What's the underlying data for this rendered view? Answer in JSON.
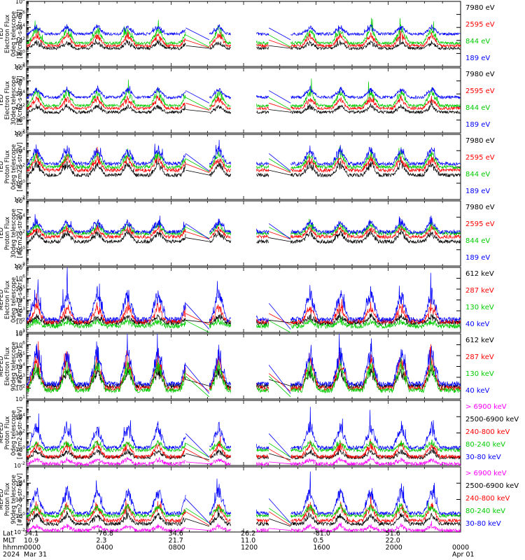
{
  "chart_data": [
    {
      "type": "line",
      "instrument": "TED",
      "ylabel": [
        "TED",
        "Electron Flux",
        "0deg telescope",
        "[#/cm2-s-str-eV]"
      ],
      "y_log_range": [
        -2,
        8
      ],
      "ytick_exponents": [
        -2,
        0,
        2,
        4,
        6,
        8
      ],
      "grid": false,
      "series": [
        {
          "name": "7980 eV",
          "color": "#000000",
          "baseline": 0.8,
          "amp": 1.0
        },
        {
          "name": "2595 eV",
          "color": "#ff0000",
          "baseline": 1.2,
          "amp": 1.8
        },
        {
          "name": "844 eV",
          "color": "#00cc00",
          "baseline": 1.6,
          "amp": 2.4
        },
        {
          "name": "189 eV",
          "color": "#0000ff",
          "baseline": 3.0,
          "amp": 1.2
        }
      ]
    },
    {
      "type": "line",
      "instrument": "TED",
      "ylabel": [
        "TED",
        "Electron Flux",
        "30deg telescope",
        "[#/cm2-s-str-eV]"
      ],
      "y_log_range": [
        -2,
        8
      ],
      "ytick_exponents": [
        -2,
        0,
        2,
        4,
        6,
        8
      ],
      "grid": false,
      "series": [
        {
          "name": "7980 eV",
          "color": "#000000",
          "baseline": 1.2,
          "amp": 1.0
        },
        {
          "name": "2595 eV",
          "color": "#ff0000",
          "baseline": 1.8,
          "amp": 1.6
        },
        {
          "name": "844 eV",
          "color": "#00cc00",
          "baseline": 2.2,
          "amp": 2.4
        },
        {
          "name": "189 eV",
          "color": "#0000ff",
          "baseline": 3.5,
          "amp": 1.4
        }
      ]
    },
    {
      "type": "line",
      "instrument": "TED",
      "ylabel": [
        "TED",
        "Proton Flux",
        "0deg telescope",
        "[#/cm2-s-str-eV]"
      ],
      "y_log_range": [
        -2,
        6
      ],
      "ytick_exponents": [
        -2,
        0,
        2,
        4,
        6
      ],
      "grid": false,
      "series": [
        {
          "name": "7980 eV",
          "color": "#000000",
          "baseline": 1.0,
          "amp": 1.5
        },
        {
          "name": "2595 eV",
          "color": "#ff0000",
          "baseline": 1.6,
          "amp": 1.6
        },
        {
          "name": "844 eV",
          "color": "#00cc00",
          "baseline": 2.0,
          "amp": 1.8
        },
        {
          "name": "189 eV",
          "color": "#0000ff",
          "baseline": 2.4,
          "amp": 2.0
        }
      ]
    },
    {
      "type": "line",
      "instrument": "TED",
      "ylabel": [
        "TED",
        "Proton Flux",
        "30deg telescope",
        "[#/cm2-s-str-eV]"
      ],
      "y_log_range": [
        -2,
        6
      ],
      "ytick_exponents": [
        -2,
        0,
        2,
        4,
        6
      ],
      "grid": false,
      "series": [
        {
          "name": "7980 eV",
          "color": "#000000",
          "baseline": 1.0,
          "amp": 1.2
        },
        {
          "name": "2595 eV",
          "color": "#ff0000",
          "baseline": 1.6,
          "amp": 1.2
        },
        {
          "name": "844 eV",
          "color": "#00cc00",
          "baseline": 2.0,
          "amp": 1.2
        },
        {
          "name": "189 eV",
          "color": "#0000ff",
          "baseline": 2.2,
          "amp": 1.4
        }
      ]
    },
    {
      "type": "line",
      "instrument": "MEPED",
      "ylabel": [
        "MEPED",
        "Electron Flux",
        "0deg telescope",
        "[#/cm2-s-str]"
      ],
      "y_log_range": [
        1,
        7
      ],
      "ytick_exponents": [
        1,
        2,
        3,
        4,
        5,
        6,
        7
      ],
      "grid": false,
      "series": [
        {
          "name": "612 keV",
          "color": "#000000",
          "baseline": 1.9,
          "amp": 0.6
        },
        {
          "name": "287 keV",
          "color": "#ff0000",
          "baseline": 2.0,
          "amp": 1.5
        },
        {
          "name": "130 keV",
          "color": "#00cc00",
          "baseline": 1.6,
          "amp": 0.5
        },
        {
          "name": "40 keV",
          "color": "#0000ff",
          "baseline": 2.2,
          "amp": 2.6
        }
      ]
    },
    {
      "type": "line",
      "instrument": "MEPED",
      "ylabel": [
        "MEPED",
        "Electron Flux",
        "90deg telescope",
        "[#/cm2-s-str]"
      ],
      "y_log_range": [
        1,
        7
      ],
      "ytick_exponents": [
        1,
        2,
        3,
        4,
        5,
        6,
        7
      ],
      "grid": false,
      "series": [
        {
          "name": "612 keV",
          "color": "#000000",
          "baseline": 2.2,
          "amp": 1.5
        },
        {
          "name": "287 keV",
          "color": "#ff0000",
          "baseline": 2.0,
          "amp": 3.0
        },
        {
          "name": "130 keV",
          "color": "#00cc00",
          "baseline": 1.8,
          "amp": 2.5
        },
        {
          "name": "40 keV",
          "color": "#0000ff",
          "baseline": 2.4,
          "amp": 3.2
        }
      ]
    },
    {
      "type": "line",
      "instrument": "MEPED",
      "ylabel": [
        "MEPED",
        "Proton Flux",
        "0deg telescope",
        "[#/cm2-s-str-keV]"
      ],
      "y_log_range": [
        -2,
        6
      ],
      "ytick_exponents": [
        -2,
        0,
        2,
        4
      ],
      "grid": false,
      "series": [
        {
          "name": "> 6900 keV",
          "color": "#ff00ff",
          "baseline": -1.8,
          "amp": 0.6
        },
        {
          "name": "2500-6900 keV",
          "color": "#000000",
          "baseline": -1.0,
          "amp": 0.8
        },
        {
          "name": "240-800 keV",
          "color": "#ff0000",
          "baseline": -0.9,
          "amp": 1.6
        },
        {
          "name": "80-240 keV",
          "color": "#00cc00",
          "baseline": -0.1,
          "amp": 1.0
        },
        {
          "name": "30-80 keV",
          "color": "#0000ff",
          "baseline": 0.2,
          "amp": 2.8
        }
      ]
    },
    {
      "type": "line",
      "instrument": "MEPED",
      "ylabel": [
        "MEPED",
        "Proton Flux",
        "90deg telescope",
        "[#/cm2-s-str-keV]"
      ],
      "y_log_range": [
        -2,
        6
      ],
      "ytick_exponents": [
        -2,
        0,
        2,
        4
      ],
      "grid": false,
      "series": [
        {
          "name": "> 6900 keV",
          "color": "#ff00ff",
          "baseline": -1.8,
          "amp": 0.6
        },
        {
          "name": "2500-6900 keV",
          "color": "#000000",
          "baseline": -1.0,
          "amp": 1.2
        },
        {
          "name": "240-800 keV",
          "color": "#ff0000",
          "baseline": -0.6,
          "amp": 2.0
        },
        {
          "name": "80-240 keV",
          "color": "#00cc00",
          "baseline": 0.0,
          "amp": 1.2
        },
        {
          "name": "30-80 keV",
          "color": "#0000ff",
          "baseline": 0.3,
          "amp": 3.0
        }
      ]
    }
  ],
  "x_axis": {
    "row_labels": [
      "Lat",
      "MLT",
      "hhmm",
      "2024"
    ],
    "ticks": [
      {
        "lat": "34.1",
        "mlt": "10.9",
        "hhmm": "0000",
        "date": "Mar 31"
      },
      {
        "lat": "-76.8",
        "mlt": "2.3",
        "hhmm": "0400",
        "date": ""
      },
      {
        "lat": "34.6",
        "mlt": "21.7",
        "hhmm": "0800",
        "date": ""
      },
      {
        "lat": "26.2",
        "mlt": "11.0",
        "hhmm": "1200",
        "date": ""
      },
      {
        "lat": "-81.0",
        "mlt": "0.5",
        "hhmm": "1600",
        "date": ""
      },
      {
        "lat": "51.6",
        "mlt": "22.0",
        "hhmm": "2000",
        "date": ""
      },
      {
        "lat": "",
        "mlt": "",
        "hhmm": "0000",
        "date": "Apr 01"
      }
    ],
    "range_hours": [
      0,
      24
    ],
    "data_gaps_hours": [
      [
        8.8,
        10.1
      ],
      [
        11.3,
        12.7
      ],
      [
        13.4,
        14.6
      ]
    ]
  }
}
